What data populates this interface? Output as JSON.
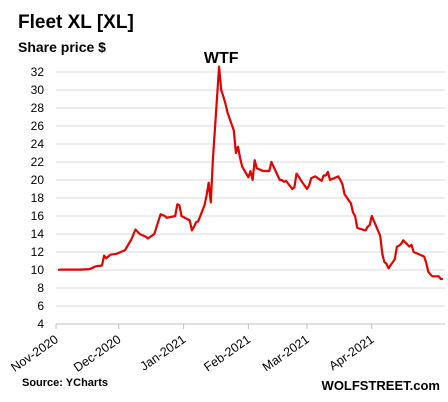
{
  "chart_data": {
    "type": "line",
    "title": "Fleet XL [XL]",
    "ylabel": "Share price $",
    "ylim": [
      4,
      32
    ],
    "yticks": [
      4,
      6,
      8,
      10,
      12,
      14,
      16,
      18,
      20,
      22,
      24,
      26,
      28,
      30,
      32
    ],
    "xticks": [
      "Nov-2020",
      "Dec-2020",
      "Jan-2021",
      "Feb-2021",
      "Mar-2021",
      "Apr-2021"
    ],
    "grid": true,
    "annotation": {
      "text": "WTF",
      "x": "2021-01-19"
    },
    "source": "Source: YCharts",
    "brand": "WOLFSTREET.com",
    "line_color": "#e00000",
    "series": [
      {
        "x": [
          "2020-11-02",
          "2020-11-03",
          "2020-11-05",
          "2020-11-10",
          "2020-11-13",
          "2020-11-17",
          "2020-11-20",
          "2020-11-23",
          "2020-11-24",
          "2020-11-25",
          "2020-11-27",
          "2020-11-30",
          "2020-12-02",
          "2020-12-04",
          "2020-12-07",
          "2020-12-09",
          "2020-12-11",
          "2020-12-14",
          "2020-12-15",
          "2020-12-18",
          "2020-12-21",
          "2020-12-22",
          "2020-12-23",
          "2020-12-24",
          "2020-12-28",
          "2020-12-29",
          "2020-12-30",
          "2020-12-31",
          "2021-01-04",
          "2021-01-05",
          "2021-01-06",
          "2021-01-07",
          "2021-01-08",
          "2021-01-11",
          "2021-01-12",
          "2021-01-13",
          "2021-01-14",
          "2021-01-15",
          "2021-01-18",
          "2021-01-19",
          "2021-01-20",
          "2021-01-21",
          "2021-01-22",
          "2021-01-25",
          "2021-01-26",
          "2021-01-27",
          "2021-01-28",
          "2021-01-29",
          "2021-02-01",
          "2021-02-02",
          "2021-02-03",
          "2021-02-04",
          "2021-02-05",
          "2021-02-08",
          "2021-02-09",
          "2021-02-10",
          "2021-02-11",
          "2021-02-12",
          "2021-02-16",
          "2021-02-17",
          "2021-02-18",
          "2021-02-19",
          "2021-02-22",
          "2021-02-23",
          "2021-02-24",
          "2021-02-25",
          "2021-02-26",
          "2021-03-01",
          "2021-03-02",
          "2021-03-03",
          "2021-03-04",
          "2021-03-05",
          "2021-03-08",
          "2021-03-09",
          "2021-03-10",
          "2021-03-11",
          "2021-03-12",
          "2021-03-15",
          "2021-03-16",
          "2021-03-17",
          "2021-03-18",
          "2021-03-19",
          "2021-03-22",
          "2021-03-23",
          "2021-03-24",
          "2021-03-25",
          "2021-03-26",
          "2021-03-29",
          "2021-03-30",
          "2021-03-31",
          "2021-04-01",
          "2021-04-05",
          "2021-04-06",
          "2021-04-07",
          "2021-04-08",
          "2021-04-09",
          "2021-04-12",
          "2021-04-13",
          "2021-04-14",
          "2021-04-15",
          "2021-04-16",
          "2021-04-19",
          "2021-04-20",
          "2021-04-21",
          "2021-04-22",
          "2021-04-23",
          "2021-04-26",
          "2021-04-27",
          "2021-04-28",
          "2021-04-29",
          "2021-04-30",
          "2021-05-03",
          "2021-05-04",
          "2021-05-05"
        ],
        "values": [
          10.0,
          10.05,
          10.05,
          10.05,
          10.05,
          10.1,
          10.4,
          10.5,
          11.6,
          11.3,
          11.7,
          11.8,
          12.0,
          12.2,
          13.4,
          14.5,
          14.0,
          13.7,
          13.5,
          14.0,
          16.2,
          16.1,
          16.0,
          15.8,
          16.0,
          17.3,
          17.2,
          16.0,
          15.5,
          14.4,
          14.8,
          15.3,
          15.4,
          17.2,
          18.3,
          19.7,
          17.5,
          22.3,
          32.6,
          30.0,
          29.3,
          28.5,
          27.5,
          25.5,
          23.0,
          23.7,
          22.5,
          21.5,
          20.3,
          21.0,
          20.0,
          22.2,
          21.3,
          21.0,
          21.0,
          21.0,
          21.0,
          22.0,
          20.0,
          20.0,
          19.8,
          19.9,
          19.0,
          19.2,
          20.7,
          20.4,
          20.0,
          19.0,
          19.4,
          20.2,
          20.3,
          20.4,
          19.9,
          20.5,
          20.5,
          20.9,
          20.0,
          20.3,
          20.4,
          20.0,
          19.5,
          18.4,
          17.4,
          16.4,
          16.0,
          14.7,
          14.6,
          14.4,
          14.8,
          15.0,
          16.0,
          13.8,
          11.8,
          10.9,
          10.7,
          10.2,
          11.2,
          12.6,
          12.7,
          12.9,
          13.3,
          12.6,
          12.8,
          12.0,
          11.9,
          11.8,
          11.5,
          10.8,
          9.8,
          9.5,
          9.3,
          9.3,
          9.0,
          9.0
        ]
      }
    ]
  }
}
